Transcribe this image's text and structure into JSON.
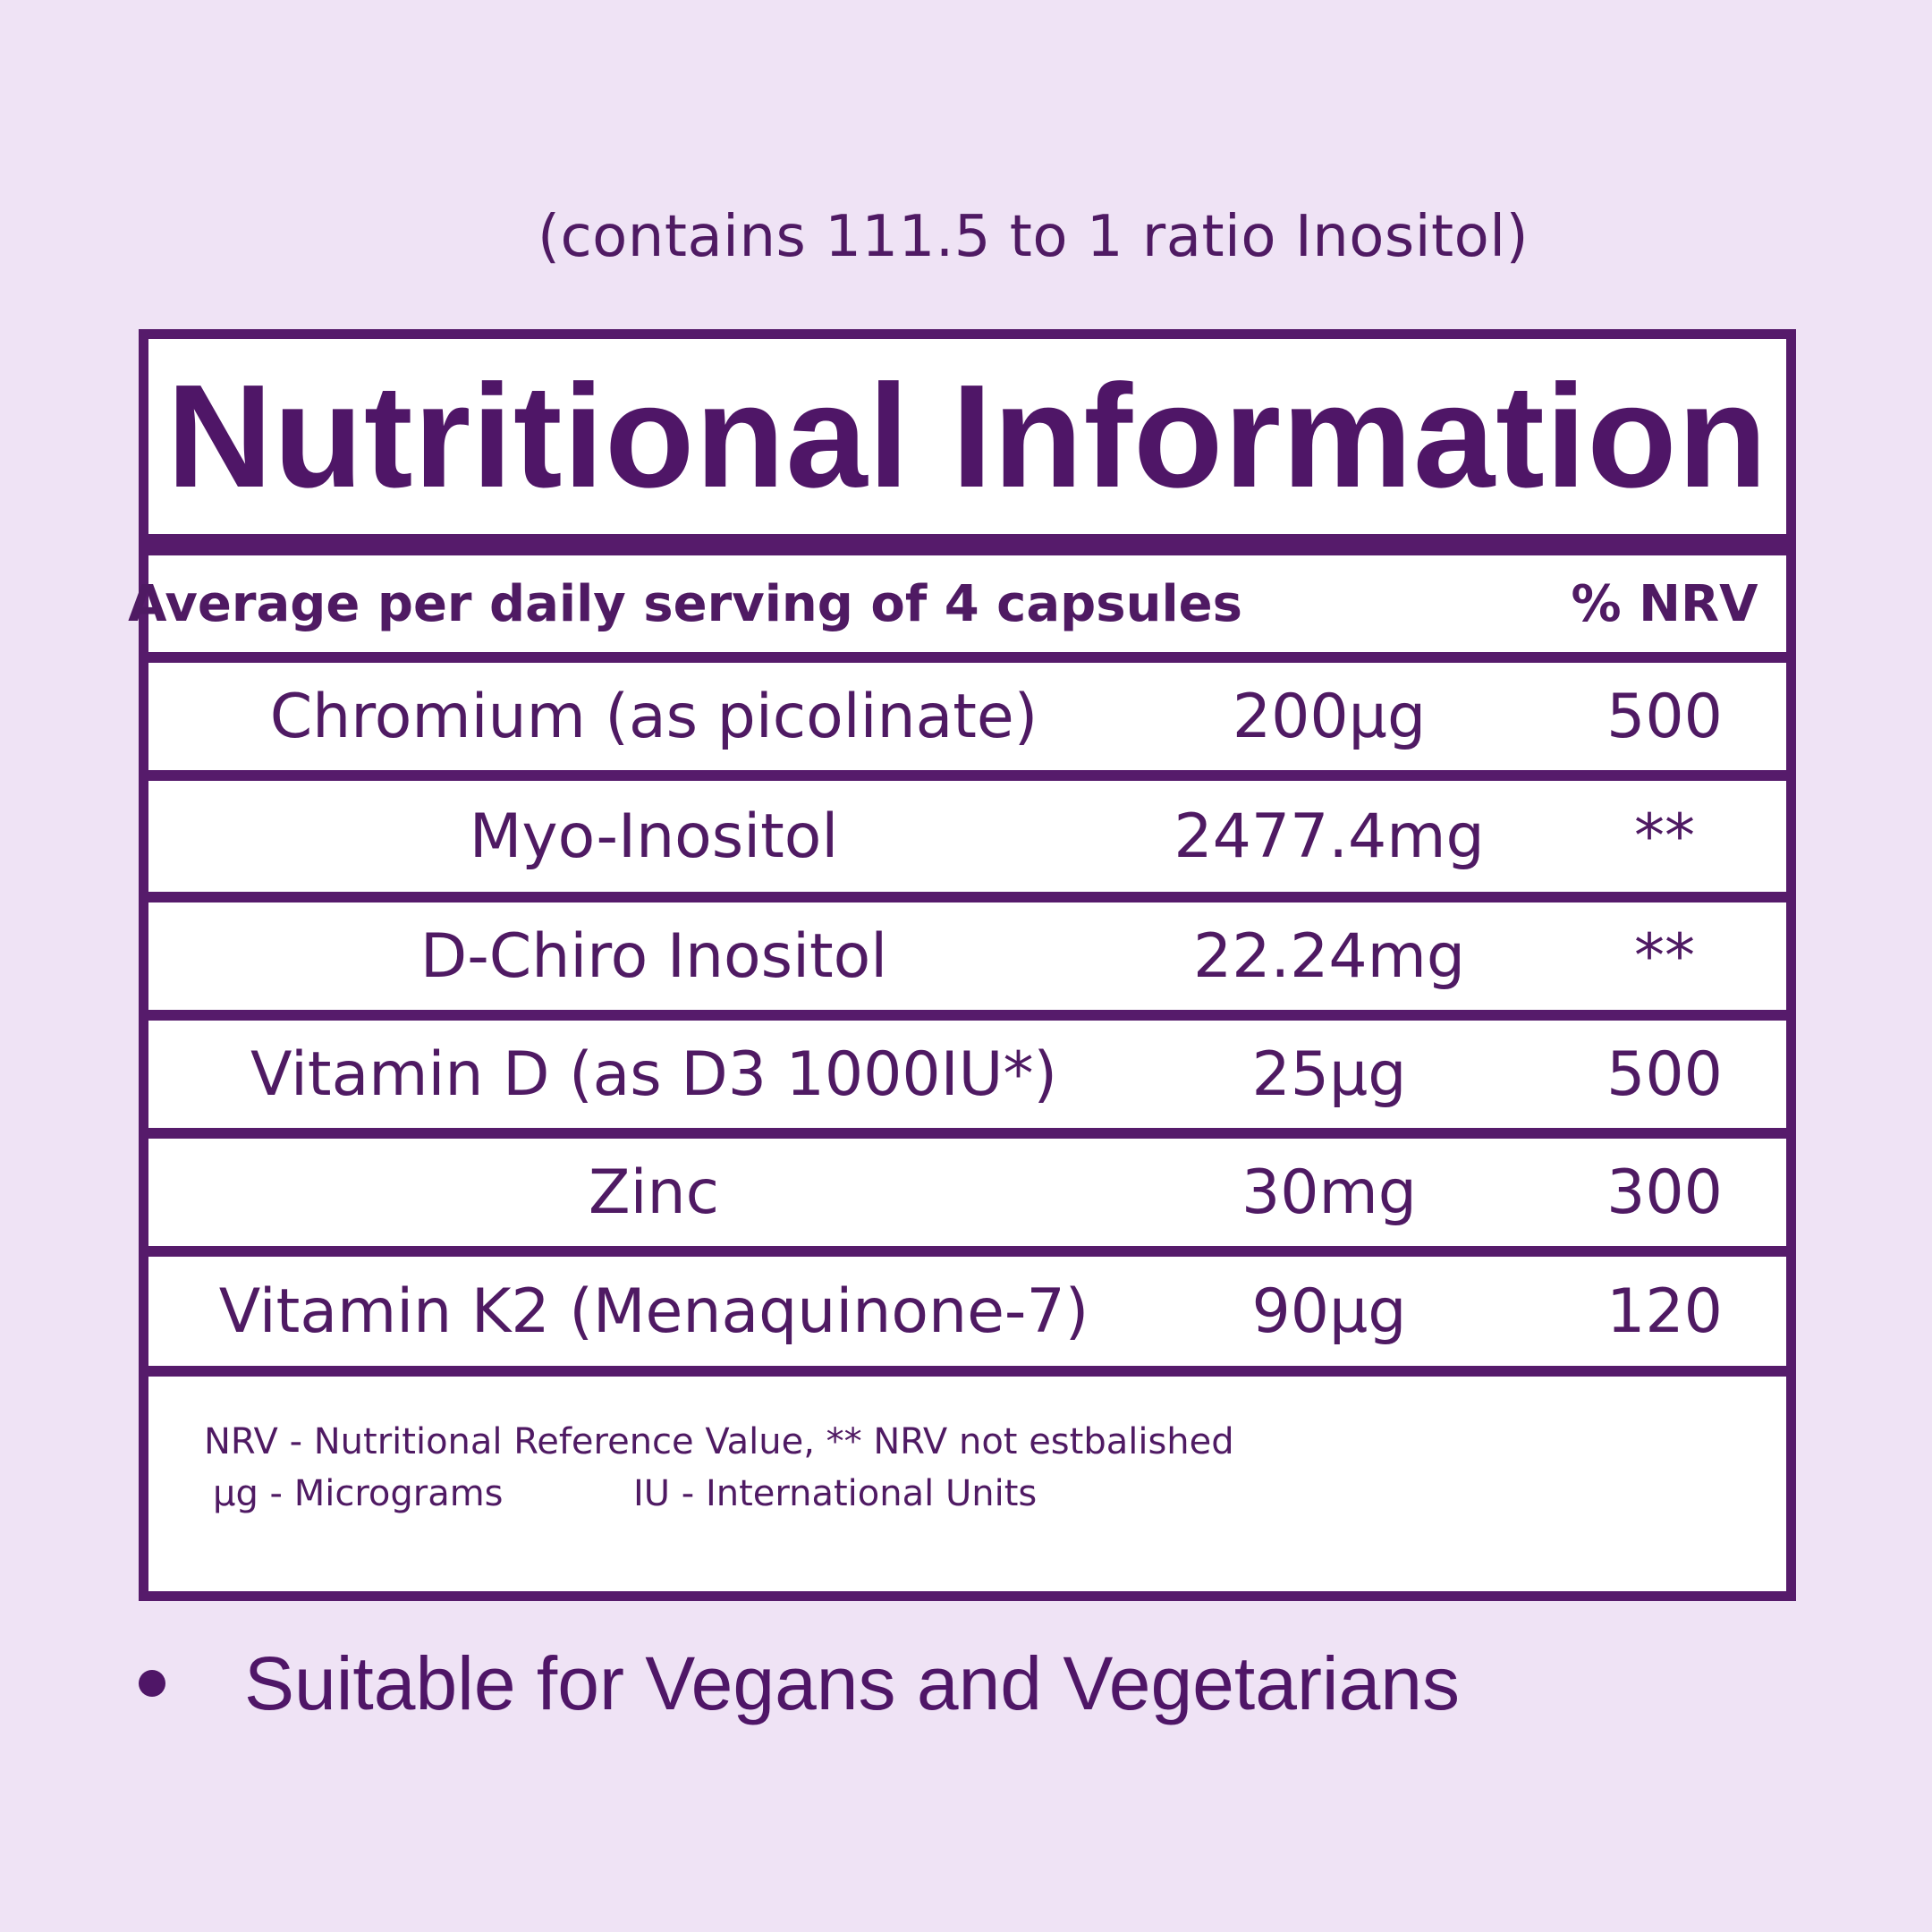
{
  "subtitle": "(contains 111.5 to 1 ratio Inositol)",
  "title": "Nutritional Information",
  "header": {
    "serving": "Average per daily serving of 4 capsules",
    "nrv": "% NRV"
  },
  "rows": [
    {
      "name": "Chromium (as picolinate)",
      "amount": "200µg",
      "nrv": "500"
    },
    {
      "name": "Myo-Inositol",
      "amount": "2477.4mg",
      "nrv": "**"
    },
    {
      "name": "D-Chiro Inositol",
      "amount": "22.24mg",
      "nrv": "**"
    },
    {
      "name": "Vitamin D (as D3 1000IU*)",
      "amount": "25µg",
      "nrv": "500"
    },
    {
      "name": "Zinc",
      "amount": "30mg",
      "nrv": "300"
    },
    {
      "name": "Vitamin K2 (Menaquinone-7)",
      "amount": "90µg",
      "nrv": "120"
    }
  ],
  "footnotes": {
    "line1": "NRV - Nutritional Reference Value, ** NRV not estbalished",
    "micrograms": "µg - Micrograms",
    "iu": "IU - International Units"
  },
  "bullet": "Suitable for Vegans and Vegetarians",
  "colors": {
    "background": "#efe3f5",
    "accent": "#561b6b",
    "panel": "#ffffff"
  }
}
